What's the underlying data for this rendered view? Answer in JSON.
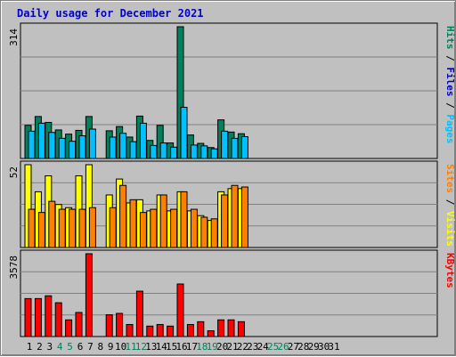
{
  "title": "Daily usage for December 2021",
  "colors": {
    "hits": "#00805c",
    "files": "#00c0ff",
    "sites": "#ff8000",
    "visits": "#ffff00",
    "kbytes": "#ff0000",
    "weekday": "#000000",
    "weekend": "#00805c",
    "separator": "#000000"
  },
  "chart_data": {
    "type": "bar",
    "days": [
      "1",
      "2",
      "3",
      "4",
      "5",
      "6",
      "7",
      "8",
      "9",
      "10",
      "11",
      "12",
      "13",
      "14",
      "15",
      "16",
      "17",
      "18",
      "19",
      "20",
      "21",
      "22",
      "23",
      "24",
      "25",
      "26",
      "27",
      "28",
      "29",
      "30",
      "31"
    ],
    "weekend_days": [
      "4",
      "5",
      "11",
      "12",
      "18",
      "19",
      "25",
      "26"
    ],
    "panels": [
      {
        "id": "hits-files",
        "axis_max_label": "314",
        "ylim": [
          0,
          314
        ],
        "series": [
          {
            "name": "Hits",
            "color": "#00805c",
            "values": [
              79,
              100,
              86,
              68,
              58,
              67,
              100,
              0,
              66,
              76,
              51,
              101,
              43,
              79,
              37,
              314,
              56,
              36,
              26,
              92,
              63,
              59,
              0,
              0,
              0,
              0,
              0,
              0,
              0,
              0,
              0
            ]
          },
          {
            "name": "Files",
            "color": "#00c0ff",
            "values": [
              65,
              84,
              62,
              48,
              41,
              54,
              70,
              0,
              51,
              60,
              40,
              84,
              31,
              37,
              27,
              122,
              32,
              30,
              23,
              65,
              48,
              52,
              0,
              0,
              0,
              0,
              0,
              0,
              0,
              0,
              0
            ]
          }
        ],
        "legend": [
          {
            "text": "Hits",
            "color": "#00805c"
          },
          {
            "text": " / ",
            "color": "#000000"
          },
          {
            "text": "Files",
            "color": "#0000cc"
          },
          {
            "text": " / ",
            "color": "#000000"
          },
          {
            "text": "Pages",
            "color": "#00c0ff"
          }
        ]
      },
      {
        "id": "visits-sites",
        "axis_max_label": "52",
        "ylim": [
          0,
          52
        ],
        "series": [
          {
            "name": "Visits",
            "color": "#ffff00",
            "values": [
              52,
              35,
              45,
              27,
              25,
              45,
              52,
              0,
              33,
              43,
              28,
              30,
              23,
              33,
              23,
              35,
              23,
              20,
              17,
              35,
              37,
              37,
              0,
              0,
              0,
              0,
              0,
              0,
              0,
              0,
              0
            ]
          },
          {
            "name": "Sites",
            "color": "#ff8000",
            "values": [
              24,
              22,
              29,
              24,
              24,
              24,
              25,
              0,
              25,
              39,
              30,
              22,
              24,
              33,
              24,
              35,
              24,
              19,
              18,
              33,
              39,
              38,
              0,
              0,
              0,
              0,
              0,
              0,
              0,
              0,
              0
            ]
          }
        ],
        "legend": [
          {
            "text": "Sites",
            "color": "#ff8000"
          },
          {
            "text": " / ",
            "color": "#000000"
          },
          {
            "text": "Visits",
            "color": "#ffff00"
          }
        ]
      },
      {
        "id": "kbytes",
        "axis_max_label": "3578",
        "ylim": [
          0,
          3578
        ],
        "series": [
          {
            "name": "KBytes",
            "color": "#ff0000",
            "values": [
              1640,
              1640,
              1760,
              1460,
              720,
              1040,
              3578,
              0,
              940,
              1000,
              520,
              1960,
              450,
              520,
              450,
              2270,
              520,
              640,
              250,
              720,
              720,
              640,
              0,
              0,
              0,
              0,
              0,
              0,
              0,
              0,
              0
            ]
          }
        ],
        "legend": [
          {
            "text": "KBytes",
            "color": "#ff0000"
          }
        ]
      }
    ]
  }
}
